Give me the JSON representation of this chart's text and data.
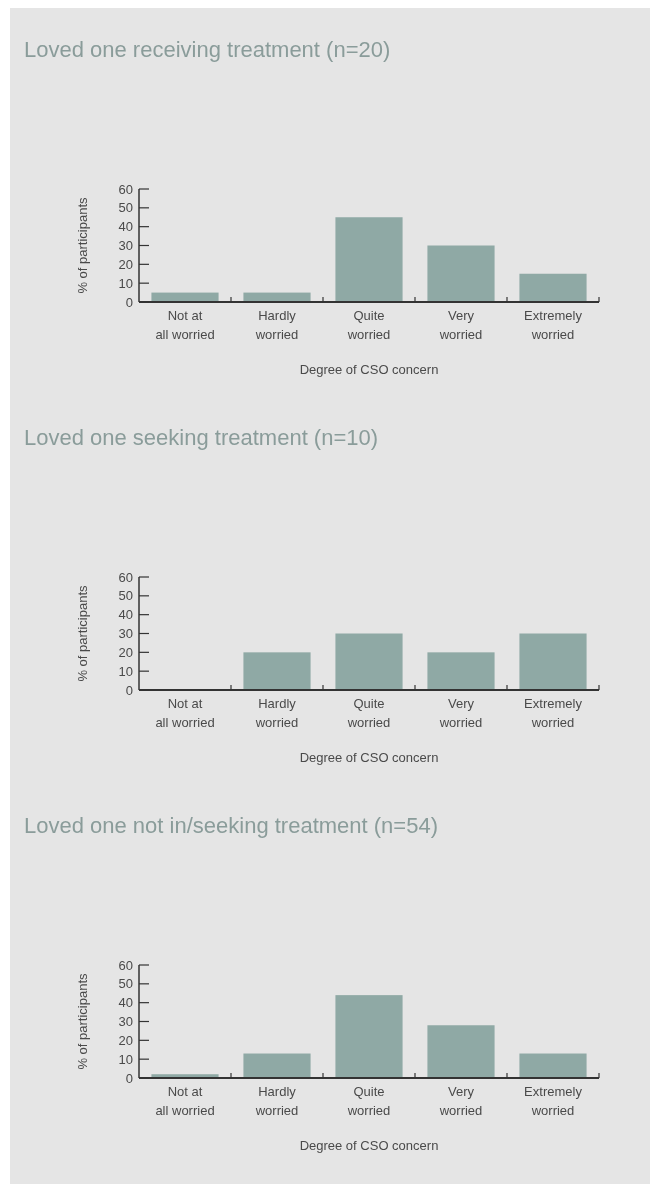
{
  "chart_data": [
    {
      "type": "bar",
      "title": "Loved one receiving treatment (n=20)",
      "xlabel": "Degree of CSO concern",
      "ylabel": "% of participants",
      "categories": [
        "Not at all worried",
        "Hardly worried",
        "Quite worried",
        "Very worried",
        "Extremely worried"
      ],
      "values": [
        5,
        5,
        45,
        30,
        15
      ],
      "color": "#8fa9a5",
      "ylim": [
        0,
        60
      ],
      "yticks": [
        0,
        10,
        20,
        30,
        40,
        50,
        60
      ]
    },
    {
      "type": "bar",
      "title": "Loved one seeking treatment (n=10)",
      "xlabel": "Degree of CSO concern",
      "ylabel": "% of participants",
      "categories": [
        "Not at all worried",
        "Hardly worried",
        "Quite worried",
        "Very worried",
        "Extremely worried"
      ],
      "values": [
        0,
        20,
        30,
        20,
        30
      ],
      "color": "#8fa9a5",
      "ylim": [
        0,
        60
      ],
      "yticks": [
        0,
        10,
        20,
        30,
        40,
        50,
        60
      ]
    },
    {
      "type": "bar",
      "title": "Loved one not in/seeking treatment (n=54)",
      "xlabel": "Degree of CSO concern",
      "ylabel": "% of participants",
      "categories": [
        "Not at all worried",
        "Hardly worried",
        "Quite worried",
        "Very worried",
        "Extremely worried"
      ],
      "values": [
        2,
        13,
        44,
        28,
        13
      ],
      "color": "#8fa9a5",
      "ylim": [
        0,
        60
      ],
      "yticks": [
        0,
        10,
        20,
        30,
        40,
        50,
        60
      ]
    }
  ]
}
